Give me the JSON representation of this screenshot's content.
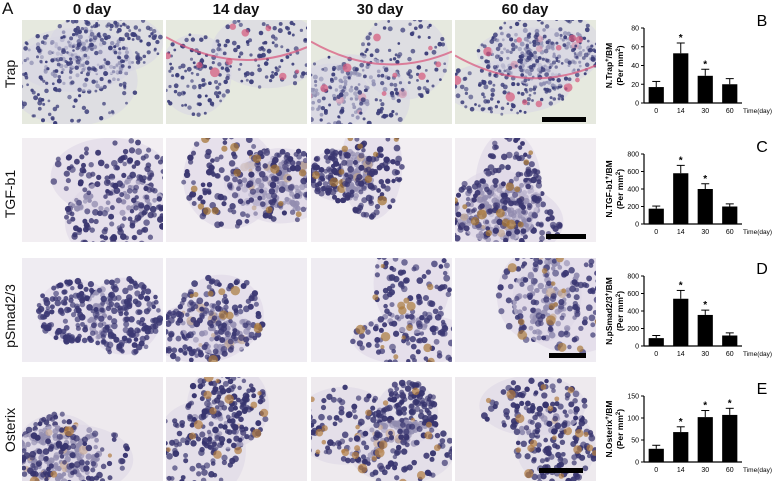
{
  "figure": {
    "panel_a_letter": "A",
    "column_headers": [
      "0 day",
      "14 day",
      "30 day",
      "60 day"
    ],
    "row_labels": [
      "Trap",
      "TGF-b1",
      "pSmad2/3",
      "Osterix"
    ]
  },
  "chart_data": [
    {
      "type": "bar",
      "panel": "B",
      "ylabel": "N.Trap+/BM (Per mm²)",
      "ylabel_parts": {
        "line1": "N.Trap",
        "sup1": "+",
        "line1_tail": "/BM",
        "line2": "(Per mm",
        "sup2": "2",
        "line2_tail": ")"
      },
      "xlabel": "Time(day)",
      "categories": [
        "0",
        "14",
        "30",
        "60"
      ],
      "values": [
        17,
        53,
        29,
        20
      ],
      "errors": [
        6,
        11,
        7,
        6
      ],
      "significant": [
        false,
        true,
        true,
        false
      ],
      "star": "*",
      "ylim": [
        0,
        80
      ],
      "yticks": [
        "0",
        "20",
        "40",
        "60",
        "80"
      ],
      "ytick_values": [
        0,
        20,
        40,
        60,
        80
      ]
    },
    {
      "type": "bar",
      "panel": "C",
      "ylabel": "N.TGF-b1+/BM (Per mm²)",
      "ylabel_parts": {
        "line1": "N.TGF-b1",
        "sup1": "+",
        "line1_tail": "/BM",
        "line2": "(Per mm",
        "sup2": "2",
        "line2_tail": ")"
      },
      "xlabel": "Time(day)",
      "categories": [
        "0",
        "14",
        "30",
        "60"
      ],
      "values": [
        175,
        580,
        400,
        200
      ],
      "errors": [
        30,
        90,
        60,
        30
      ],
      "significant": [
        false,
        true,
        true,
        false
      ],
      "star": "*",
      "ylim": [
        0,
        800
      ],
      "yticks": [
        "0",
        "200",
        "400",
        "600",
        "800"
      ],
      "ytick_values": [
        0,
        200,
        400,
        600,
        800
      ]
    },
    {
      "type": "bar",
      "panel": "D",
      "ylabel": "N.pSmad2/3+/BM (Per mm²)",
      "ylabel_parts": {
        "line1": "N.pSmad2/3",
        "sup1": "+",
        "line1_tail": "/BM",
        "line2": "(Per mm",
        "sup2": "2",
        "line2_tail": ")"
      },
      "xlabel": "Time(day)",
      "categories": [
        "0",
        "14",
        "30",
        "60"
      ],
      "values": [
        90,
        540,
        355,
        120
      ],
      "errors": [
        30,
        95,
        55,
        30
      ],
      "significant": [
        false,
        true,
        true,
        false
      ],
      "star": "*",
      "ylim": [
        0,
        800
      ],
      "yticks": [
        "0",
        "200",
        "400",
        "600",
        "800"
      ],
      "ytick_values": [
        0,
        200,
        400,
        600,
        800
      ]
    },
    {
      "type": "bar",
      "panel": "E",
      "ylabel": "N.Osterix+/BM (Per mm²)",
      "ylabel_parts": {
        "line1": "N.Osterix",
        "sup1": "+",
        "line1_tail": "/BM",
        "line2": "(Per mm",
        "sup2": "2",
        "line2_tail": ")"
      },
      "xlabel": "Time(day)",
      "categories": [
        "0",
        "14",
        "30",
        "60"
      ],
      "values": [
        30,
        68,
        102,
        107
      ],
      "errors": [
        8,
        12,
        15,
        15
      ],
      "significant": [
        false,
        true,
        true,
        true
      ],
      "star": "*",
      "ylim": [
        0,
        150
      ],
      "yticks": [
        "0",
        "50",
        "100",
        "150"
      ],
      "ytick_values": [
        0,
        50,
        100,
        150
      ]
    }
  ]
}
